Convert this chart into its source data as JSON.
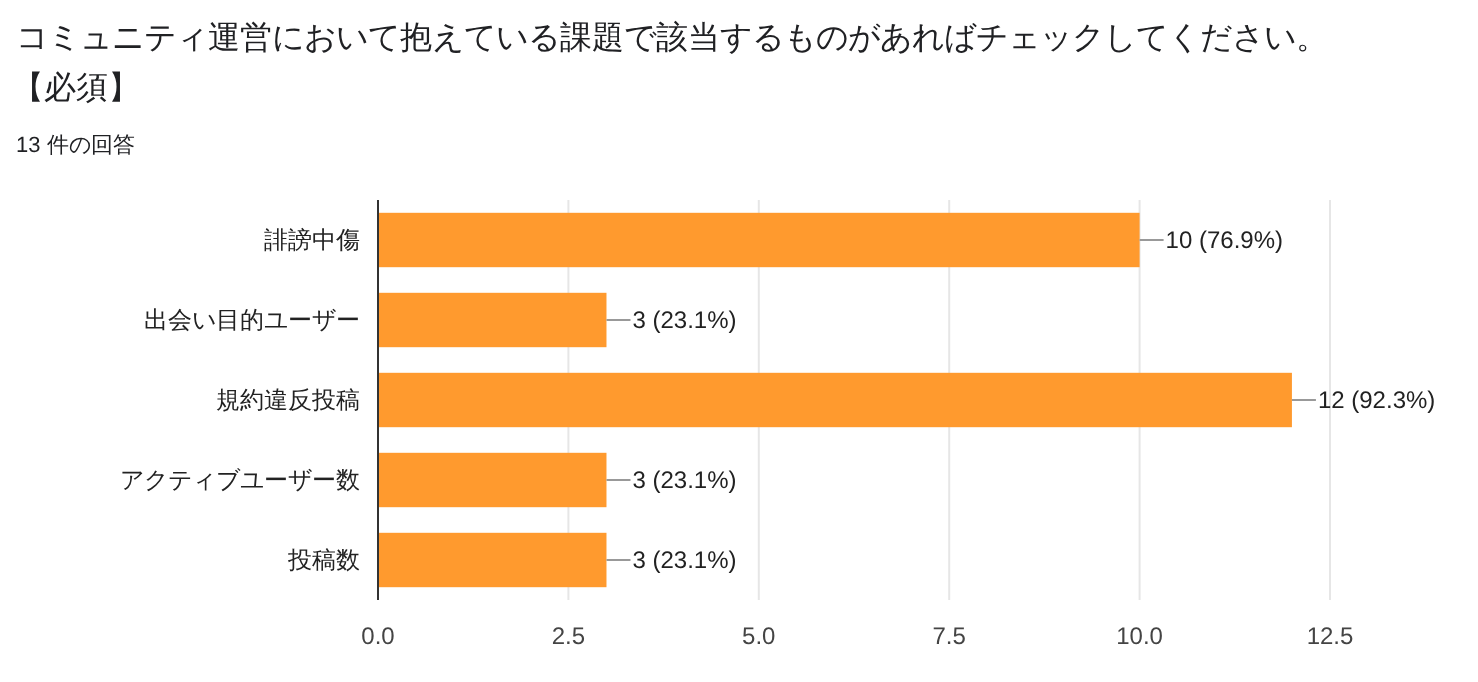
{
  "chart_data": {
    "type": "bar",
    "orientation": "horizontal",
    "title": "コミュニティ運営において抱えている課題で該当するものがあればチェックしてください。",
    "subtitle": "【必須】",
    "annotations": [
      "13 件の回答"
    ],
    "categories": [
      "誹謗中傷",
      "出会い目的ユーザー",
      "規約違反投稿",
      "アクティブユーザー数",
      "投稿数"
    ],
    "values": [
      10,
      3,
      12,
      3,
      3
    ],
    "value_labels": [
      "10 (76.9%)",
      "3 (23.1%)",
      "12 (92.3%)",
      "3 (23.1%)",
      "3 (23.1%)"
    ],
    "color": "#ff9a2e",
    "xlim": [
      0,
      12.5
    ],
    "xticks": [
      {
        "value": 0,
        "label": "0.0"
      },
      {
        "value": 2.5,
        "label": "2.5"
      },
      {
        "value": 5,
        "label": "5.0"
      },
      {
        "value": 7.5,
        "label": "7.5"
      },
      {
        "value": 10,
        "label": "10.0"
      },
      {
        "value": 12.5,
        "label": "12.5"
      }
    ],
    "grid": "x"
  }
}
